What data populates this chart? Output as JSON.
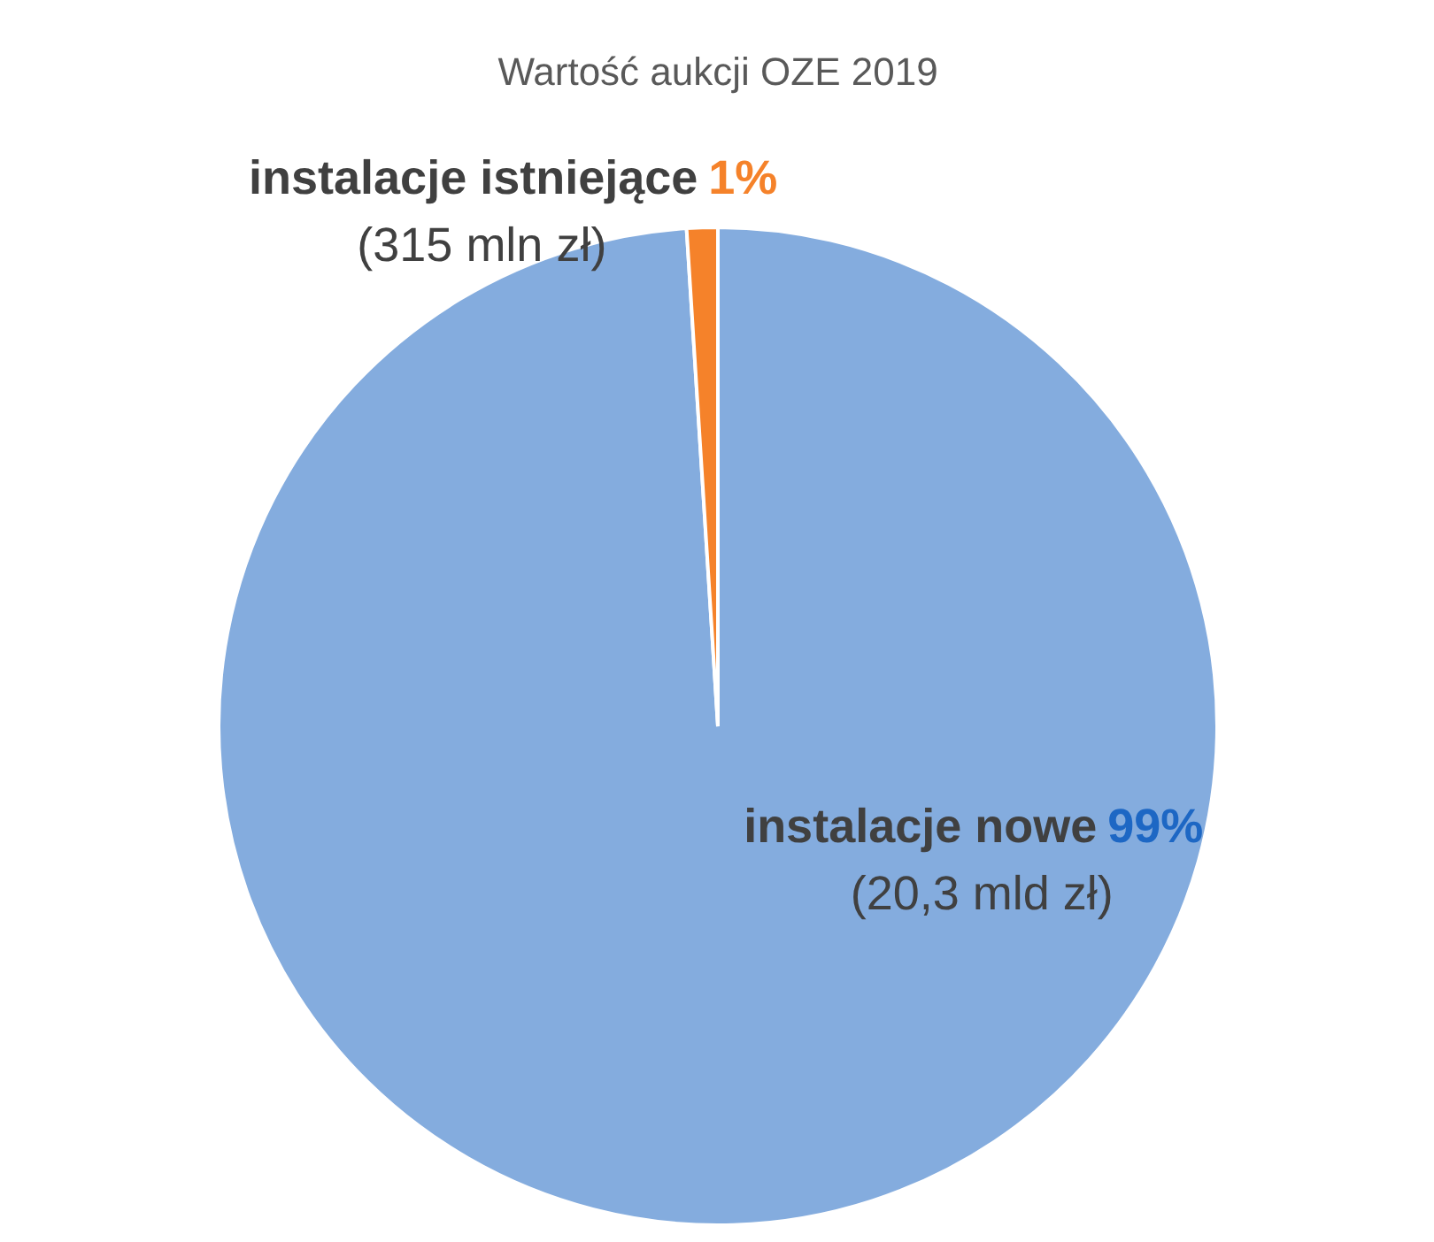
{
  "chart_data": {
    "type": "pie",
    "title": "Wartość aukcji OZE 2019",
    "categories": [
      "instalacje nowe",
      "instalacje istniejące"
    ],
    "values": [
      99,
      1
    ],
    "colors": [
      "#84acde",
      "#f5822a"
    ],
    "value_labels": [
      "99%",
      "1%"
    ],
    "annotations": [
      "(20,3 mld zł)",
      "(315 mln zł)"
    ]
  }
}
